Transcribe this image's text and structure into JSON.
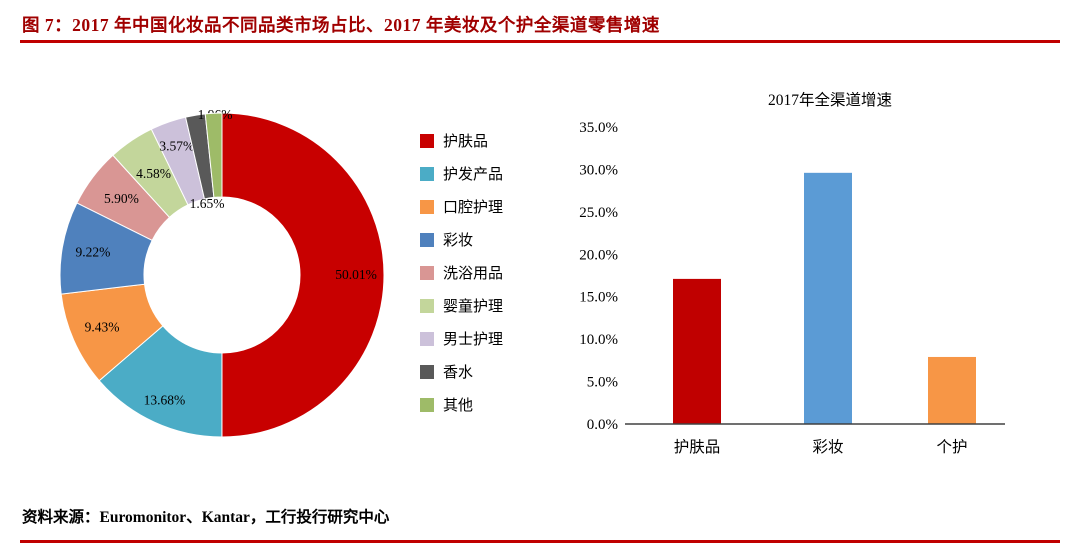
{
  "title": "图 7：2017 年中国化妆品不同品类市场占比、2017 年美妆及个护全渠道零售增速",
  "source": "资料来源：Euromonitor、Kantar，工行投行研究中心",
  "colors": {
    "accent_red": "#C00000",
    "title_red": "#A00000"
  },
  "chart_data": [
    {
      "type": "pie",
      "title": "",
      "donut": true,
      "legend_position": "right",
      "labels": [
        "护肤品",
        "护发产品",
        "口腔护理",
        "彩妆",
        "洗浴用品",
        "婴童护理",
        "男士护理",
        "香水",
        "其他"
      ],
      "values": [
        50.01,
        13.68,
        9.43,
        9.22,
        5.9,
        4.58,
        3.57,
        1.96,
        1.65
      ],
      "value_labels": [
        "50.01%",
        "13.68%",
        "9.43%",
        "9.22%",
        "5.90%",
        "4.58%",
        "3.57%",
        "1.96%",
        "1.65%"
      ],
      "colors": [
        "#C80000",
        "#4BACC6",
        "#F79646",
        "#4F81BD",
        "#D99694",
        "#C3D69B",
        "#CCC1DA",
        "#595959",
        "#9EBB68"
      ]
    },
    {
      "type": "bar",
      "title": "2017年全渠道增速",
      "categories": [
        "护肤品",
        "彩妆",
        "个护"
      ],
      "values": [
        17.1,
        29.6,
        7.9
      ],
      "colors": [
        "#C00000",
        "#5B9BD5",
        "#F79646"
      ],
      "ylim": [
        0,
        35
      ],
      "ytick_step": 5,
      "ytick_labels": [
        "0.0%",
        "5.0%",
        "10.0%",
        "15.0%",
        "20.0%",
        "25.0%",
        "30.0%",
        "35.0%"
      ],
      "grid": false,
      "legend_position": "none"
    }
  ]
}
